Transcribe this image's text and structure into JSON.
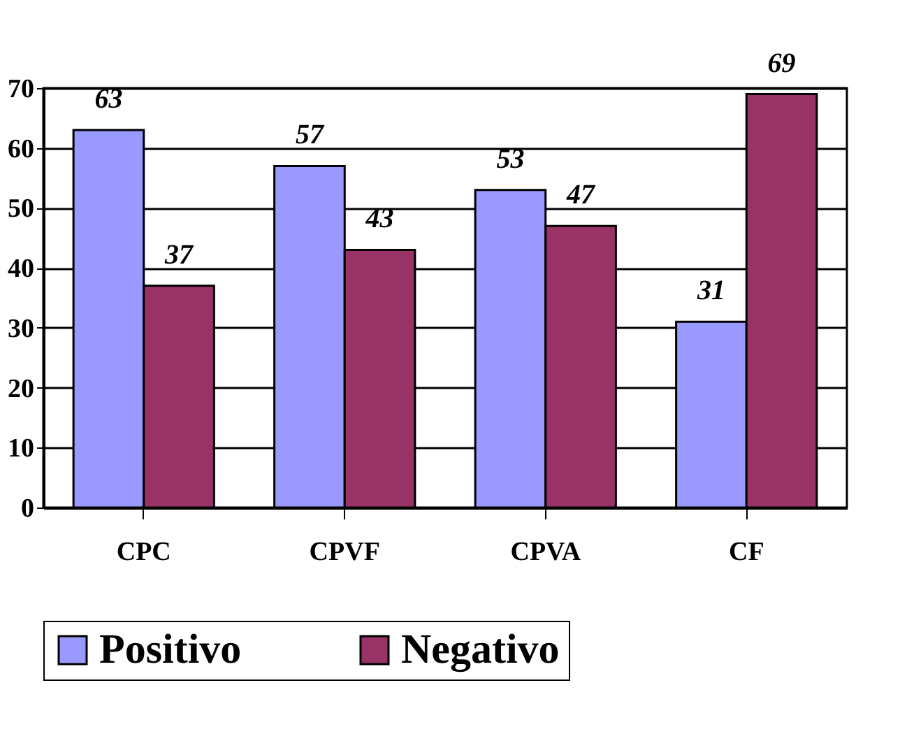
{
  "chart_data": {
    "type": "bar",
    "categories": [
      "CPC",
      "CPVF",
      "CPVA",
      "CF"
    ],
    "series": [
      {
        "name": "Positivo",
        "color": "#9999ff",
        "values": [
          63,
          57,
          53,
          31
        ]
      },
      {
        "name": "Negativo",
        "color": "#993366",
        "values": [
          37,
          43,
          47,
          69
        ]
      }
    ],
    "ylim": [
      0,
      70
    ],
    "yticks": [
      0,
      10,
      20,
      30,
      40,
      50,
      60,
      70
    ],
    "grid": "y",
    "legend": "bottom",
    "data_labels": true
  }
}
